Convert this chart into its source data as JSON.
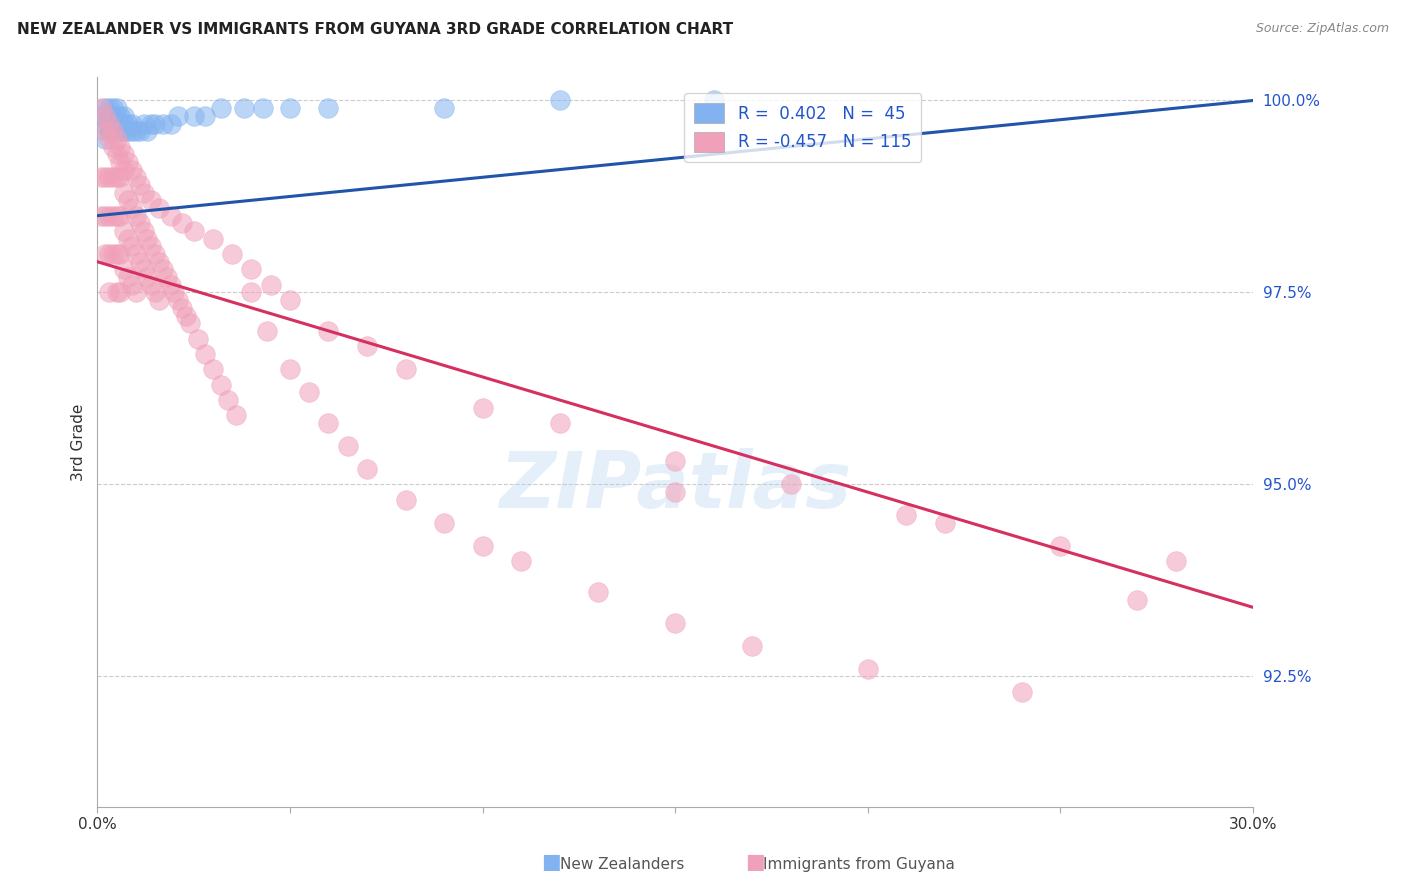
{
  "title": "NEW ZEALANDER VS IMMIGRANTS FROM GUYANA 3RD GRADE CORRELATION CHART",
  "source": "Source: ZipAtlas.com",
  "ylabel": "3rd Grade",
  "watermark": "ZIPatlas",
  "blue_color": "#82b3f0",
  "pink_color": "#f0a0b8",
  "blue_line_color": "#2255aa",
  "pink_line_color": "#d43060",
  "xmin": 0.0,
  "xmax": 0.3,
  "ymin": 0.908,
  "ymax": 1.003,
  "right_ytick_values": [
    1.0,
    0.975,
    0.95,
    0.925
  ],
  "blue_scatter_x": [
    0.001,
    0.002,
    0.002,
    0.002,
    0.003,
    0.003,
    0.003,
    0.003,
    0.004,
    0.004,
    0.004,
    0.004,
    0.005,
    0.005,
    0.005,
    0.005,
    0.006,
    0.006,
    0.006,
    0.007,
    0.007,
    0.007,
    0.008,
    0.008,
    0.009,
    0.009,
    0.01,
    0.011,
    0.012,
    0.013,
    0.014,
    0.015,
    0.017,
    0.019,
    0.021,
    0.025,
    0.028,
    0.032,
    0.038,
    0.043,
    0.05,
    0.06,
    0.09,
    0.12,
    0.16
  ],
  "blue_scatter_y": [
    0.998,
    0.999,
    0.997,
    0.995,
    0.999,
    0.998,
    0.997,
    0.996,
    0.999,
    0.998,
    0.997,
    0.996,
    0.999,
    0.998,
    0.997,
    0.996,
    0.998,
    0.997,
    0.996,
    0.998,
    0.997,
    0.996,
    0.997,
    0.996,
    0.997,
    0.996,
    0.996,
    0.996,
    0.997,
    0.996,
    0.997,
    0.997,
    0.997,
    0.997,
    0.998,
    0.998,
    0.998,
    0.999,
    0.999,
    0.999,
    0.999,
    0.999,
    0.999,
    1.0,
    1.0
  ],
  "pink_scatter_x": [
    0.001,
    0.001,
    0.002,
    0.002,
    0.002,
    0.003,
    0.003,
    0.003,
    0.003,
    0.004,
    0.004,
    0.004,
    0.005,
    0.005,
    0.005,
    0.005,
    0.006,
    0.006,
    0.006,
    0.006,
    0.007,
    0.007,
    0.007,
    0.008,
    0.008,
    0.008,
    0.009,
    0.009,
    0.009,
    0.01,
    0.01,
    0.01,
    0.011,
    0.011,
    0.012,
    0.012,
    0.013,
    0.013,
    0.014,
    0.014,
    0.015,
    0.015,
    0.016,
    0.016,
    0.017,
    0.018,
    0.019,
    0.02,
    0.021,
    0.022,
    0.023,
    0.024,
    0.026,
    0.028,
    0.03,
    0.032,
    0.034,
    0.036,
    0.04,
    0.044,
    0.05,
    0.055,
    0.06,
    0.065,
    0.07,
    0.08,
    0.09,
    0.1,
    0.11,
    0.13,
    0.15,
    0.17,
    0.2,
    0.24,
    0.27,
    0.001,
    0.002,
    0.002,
    0.003,
    0.003,
    0.004,
    0.004,
    0.005,
    0.005,
    0.006,
    0.006,
    0.007,
    0.007,
    0.008,
    0.009,
    0.01,
    0.011,
    0.012,
    0.014,
    0.016,
    0.019,
    0.022,
    0.025,
    0.03,
    0.035,
    0.04,
    0.045,
    0.05,
    0.06,
    0.07,
    0.08,
    0.1,
    0.12,
    0.15,
    0.18,
    0.21,
    0.25,
    0.28,
    0.15,
    0.22
  ],
  "pink_scatter_y": [
    0.99,
    0.985,
    0.99,
    0.985,
    0.98,
    0.99,
    0.985,
    0.98,
    0.975,
    0.99,
    0.985,
    0.98,
    0.99,
    0.985,
    0.98,
    0.975,
    0.99,
    0.985,
    0.98,
    0.975,
    0.988,
    0.983,
    0.978,
    0.987,
    0.982,
    0.977,
    0.986,
    0.981,
    0.976,
    0.985,
    0.98,
    0.975,
    0.984,
    0.979,
    0.983,
    0.978,
    0.982,
    0.977,
    0.981,
    0.976,
    0.98,
    0.975,
    0.979,
    0.974,
    0.978,
    0.977,
    0.976,
    0.975,
    0.974,
    0.973,
    0.972,
    0.971,
    0.969,
    0.967,
    0.965,
    0.963,
    0.961,
    0.959,
    0.975,
    0.97,
    0.965,
    0.962,
    0.958,
    0.955,
    0.952,
    0.948,
    0.945,
    0.942,
    0.94,
    0.936,
    0.932,
    0.929,
    0.926,
    0.923,
    0.935,
    0.999,
    0.998,
    0.996,
    0.997,
    0.995,
    0.996,
    0.994,
    0.995,
    0.993,
    0.994,
    0.992,
    0.993,
    0.991,
    0.992,
    0.991,
    0.99,
    0.989,
    0.988,
    0.987,
    0.986,
    0.985,
    0.984,
    0.983,
    0.982,
    0.98,
    0.978,
    0.976,
    0.974,
    0.97,
    0.968,
    0.965,
    0.96,
    0.958,
    0.953,
    0.95,
    0.946,
    0.942,
    0.94,
    0.949,
    0.945
  ]
}
